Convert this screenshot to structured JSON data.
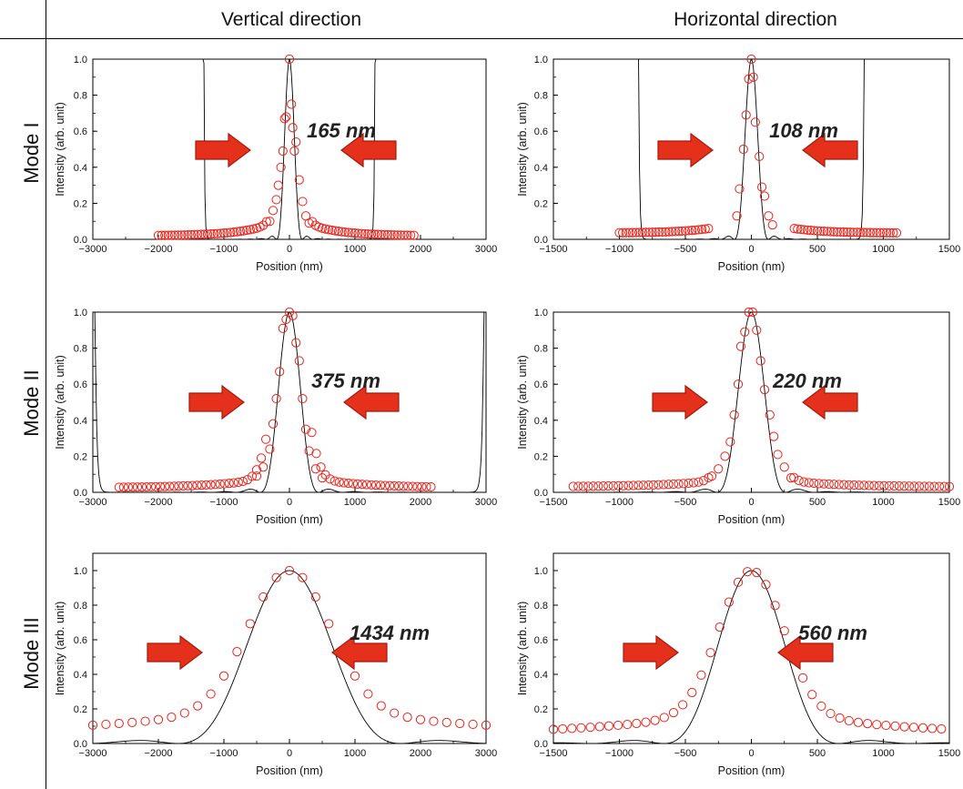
{
  "column_titles": [
    "Vertical direction",
    "Horizontal direction"
  ],
  "row_titles": [
    "Mode I",
    "Mode II",
    "Mode III"
  ],
  "colors": {
    "measured": "#e8231a",
    "model": "#000000",
    "arrow_fill": "#e5311c",
    "arrow_stroke": "#a51a0c"
  },
  "chart_data": [
    {
      "type": "scatter",
      "mode": "Mode I",
      "direction": "Vertical direction",
      "xlabel": "Position (nm)",
      "ylabel": "Intensity (arb. unit)",
      "xlim": [
        -3000,
        3000
      ],
      "ylim": [
        0,
        1.0
      ],
      "x_ticks": [
        -3000,
        -2000,
        -1000,
        0,
        1000,
        2000,
        3000
      ],
      "y_ticks": [
        0.0,
        0.2,
        0.4,
        0.6,
        0.8,
        1.0
      ],
      "fwhm_label": "165 nm",
      "fwhm": 165,
      "model_sidelobe": 0.012,
      "measured": {
        "x_range": [
          -2000,
          1900
        ],
        "step": 50,
        "background": 0.02,
        "width": 300,
        "shoulder": 0.12,
        "peak_points": [
          [
            -300,
            0.1
          ],
          [
            -250,
            0.16
          ],
          [
            -200,
            0.22
          ],
          [
            -170,
            0.3
          ],
          [
            -130,
            0.4
          ],
          [
            -100,
            0.49
          ],
          [
            -75,
            0.67
          ],
          [
            -50,
            0.68
          ],
          [
            0,
            1.0
          ],
          [
            30,
            0.75
          ],
          [
            50,
            0.62
          ],
          [
            75,
            0.49
          ],
          [
            100,
            0.54
          ],
          [
            150,
            0.33
          ],
          [
            200,
            0.21
          ],
          [
            250,
            0.13
          ],
          [
            300,
            0.09
          ]
        ]
      }
    },
    {
      "type": "scatter",
      "mode": "Mode I",
      "direction": "Horizontal direction",
      "xlabel": "Position (nm)",
      "ylabel": "Intensity (arb. unit)",
      "xlim": [
        -1500,
        1500
      ],
      "ylim": [
        0,
        1.0
      ],
      "x_ticks": [
        -1500,
        -1000,
        -500,
        0,
        500,
        1000,
        1500
      ],
      "y_ticks": [
        0.0,
        0.2,
        0.4,
        0.6,
        0.8,
        1.0
      ],
      "fwhm_label": "108 nm",
      "fwhm": 108,
      "model_sidelobe": 0.012,
      "measured": {
        "x_range": [
          -1000,
          1100
        ],
        "step": 25,
        "background": 0.035,
        "width": 150,
        "shoulder": 0.1,
        "peak_points": [
          [
            -110,
            0.13
          ],
          [
            -90,
            0.28
          ],
          [
            -60,
            0.5
          ],
          [
            -40,
            0.69
          ],
          [
            -20,
            0.89
          ],
          [
            0,
            1.0
          ],
          [
            15,
            0.9
          ],
          [
            30,
            0.65
          ],
          [
            60,
            0.46
          ],
          [
            80,
            0.29
          ],
          [
            100,
            0.24
          ],
          [
            130,
            0.13
          ],
          [
            160,
            0.08
          ]
        ]
      }
    },
    {
      "type": "scatter",
      "mode": "Mode II",
      "direction": "Vertical direction",
      "xlabel": "Position (nm)",
      "ylabel": "Intensity (arb. unit)",
      "xlim": [
        -3000,
        3000
      ],
      "ylim": [
        0,
        1.0
      ],
      "x_ticks": [
        -3000,
        -2000,
        -1000,
        0,
        1000,
        2000,
        3000
      ],
      "y_ticks": [
        0.0,
        0.2,
        0.4,
        0.6,
        0.8,
        1.0
      ],
      "fwhm_label": "375 nm",
      "fwhm": 375,
      "model_sidelobe": 0.012,
      "measured": {
        "x_range": [
          -2600,
          2200
        ],
        "step": 70,
        "background": 0.025,
        "width": 500,
        "shoulder": 0.08,
        "peak_points": [
          [
            -500,
            0.09
          ],
          [
            -400,
            0.14
          ],
          [
            -300,
            0.24
          ],
          [
            -250,
            0.38
          ],
          [
            -200,
            0.52
          ],
          [
            -150,
            0.67
          ],
          [
            -100,
            0.91
          ],
          [
            -50,
            0.96
          ],
          [
            0,
            1.0
          ],
          [
            50,
            0.98
          ],
          [
            100,
            0.83
          ],
          [
            150,
            0.73
          ],
          [
            200,
            0.52
          ],
          [
            250,
            0.35
          ],
          [
            300,
            0.23
          ],
          [
            400,
            0.13
          ],
          [
            500,
            0.08
          ]
        ]
      }
    },
    {
      "type": "scatter",
      "mode": "Mode II",
      "direction": "Horizontal direction",
      "xlabel": "Position (nm)",
      "ylabel": "Intensity (arb. unit)",
      "xlim": [
        -1500,
        1500
      ],
      "ylim": [
        0,
        1.0
      ],
      "x_ticks": [
        -1500,
        -1000,
        -500,
        0,
        500,
        1000,
        1500
      ],
      "y_ticks": [
        0.0,
        0.2,
        0.4,
        0.6,
        0.8,
        1.0
      ],
      "fwhm_label": "220 nm",
      "fwhm": 220,
      "model_sidelobe": 0.012,
      "measured": {
        "x_range": [
          -1350,
          1500
        ],
        "step": 38,
        "background": 0.03,
        "width": 280,
        "shoulder": 0.06,
        "peak_points": [
          [
            -300,
            0.09
          ],
          [
            -250,
            0.13
          ],
          [
            -200,
            0.2
          ],
          [
            -160,
            0.28
          ],
          [
            -130,
            0.43
          ],
          [
            -100,
            0.6
          ],
          [
            -80,
            0.81
          ],
          [
            -50,
            0.89
          ],
          [
            -20,
            1.0
          ],
          [
            10,
            1.0
          ],
          [
            40,
            0.9
          ],
          [
            70,
            0.73
          ],
          [
            100,
            0.57
          ],
          [
            140,
            0.43
          ],
          [
            170,
            0.31
          ],
          [
            200,
            0.21
          ],
          [
            250,
            0.14
          ],
          [
            300,
            0.08
          ]
        ]
      }
    },
    {
      "type": "scatter",
      "mode": "Mode III",
      "direction": "Vertical direction",
      "xlabel": "Position (nm)",
      "ylabel": "Intensity (arb. unit)",
      "xlim": [
        -3000,
        3000
      ],
      "ylim": [
        0,
        1.1
      ],
      "x_ticks": [
        -3000,
        -2000,
        -1000,
        0,
        1000,
        2000,
        3000
      ],
      "y_ticks": [
        0.0,
        0.2,
        0.4,
        0.6,
        0.8,
        1.0
      ],
      "fwhm_label": "1434 nm",
      "fwhm": 1434,
      "model_sidelobe": 0.04,
      "measured": {
        "x_range": [
          -3000,
          3000
        ],
        "step": 200,
        "background": 0.055,
        "width": 1434,
        "shoulder": 0.2
      }
    },
    {
      "type": "scatter",
      "mode": "Mode III",
      "direction": "Horizontal direction",
      "xlabel": "Position (nm)",
      "ylabel": "Intensity (arb. unit)",
      "xlim": [
        -1500,
        1500
      ],
      "ylim": [
        0,
        1.1
      ],
      "x_ticks": [
        -1500,
        -1000,
        -500,
        0,
        500,
        1000,
        1500
      ],
      "y_ticks": [
        0.0,
        0.2,
        0.4,
        0.6,
        0.8,
        1.0
      ],
      "fwhm_label": "560 nm",
      "fwhm": 560,
      "model_sidelobe": 0.04,
      "measured": {
        "x_range": [
          -1500,
          1500
        ],
        "step": 70,
        "background": 0.05,
        "width": 560,
        "shoulder": 0.18
      }
    }
  ]
}
